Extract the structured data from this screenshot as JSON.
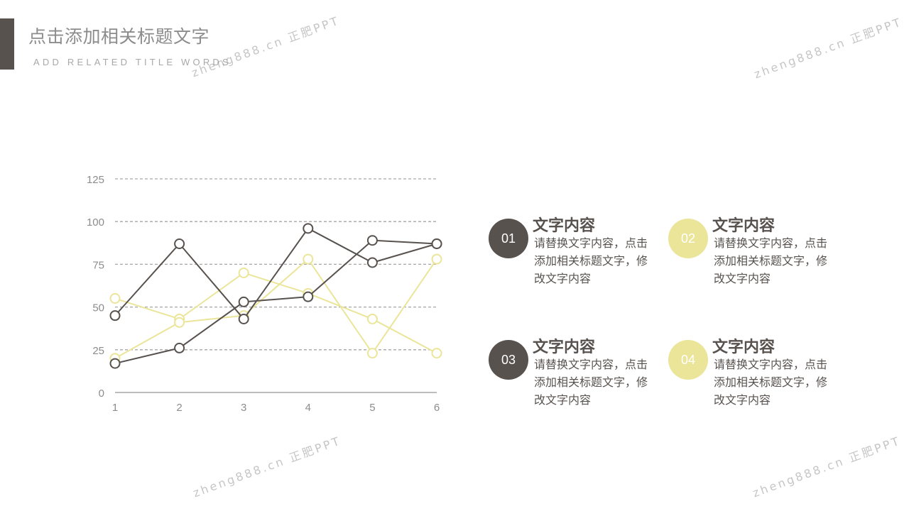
{
  "header": {
    "title": "点击添加相关标题文字",
    "subtitle": "ADD RELATED TITLE WORDS"
  },
  "watermarks": [
    "zheng888.cn 正肥PPT",
    "zheng888.cn 正肥PPT",
    "zheng888.cn 正肥PPT",
    "zheng888.cn 正肥PPT"
  ],
  "colors": {
    "dark": "#58524f",
    "light": "#ebe59a",
    "grid": "#a6a6a6",
    "axis_text": "#8c8c8c"
  },
  "chart_data": {
    "type": "line",
    "categories": [
      "1",
      "2",
      "3",
      "4",
      "5",
      "6"
    ],
    "ylim": [
      0,
      125
    ],
    "yticks": [
      0,
      25,
      50,
      75,
      100,
      125
    ],
    "grid": true,
    "series": [
      {
        "color": "#58524f",
        "values": [
          45,
          87,
          43,
          96,
          76,
          87
        ]
      },
      {
        "color": "#58524f",
        "values": [
          17,
          26,
          53,
          56,
          89,
          87
        ]
      },
      {
        "color": "#ebe59a",
        "values": [
          55,
          43,
          70,
          58,
          43,
          23
        ]
      },
      {
        "color": "#ebe59a",
        "values": [
          20,
          41,
          45,
          78,
          23,
          78
        ]
      }
    ]
  },
  "items": [
    {
      "number": "01",
      "title": "文字内容",
      "desc": "请替换文字内容，点击添加相关标题文字，修改文字内容",
      "color": "#58524f"
    },
    {
      "number": "02",
      "title": "文字内容",
      "desc": "请替换文字内容，点击添加相关标题文字，修改文字内容",
      "color": "#ebe59a"
    },
    {
      "number": "03",
      "title": "文字内容",
      "desc": "请替换文字内容，点击添加相关标题文字，修改文字内容",
      "color": "#58524f"
    },
    {
      "number": "04",
      "title": "文字内容",
      "desc": "请替换文字内容，点击添加相关标题文字，修改文字内容",
      "color": "#ebe59a"
    }
  ]
}
